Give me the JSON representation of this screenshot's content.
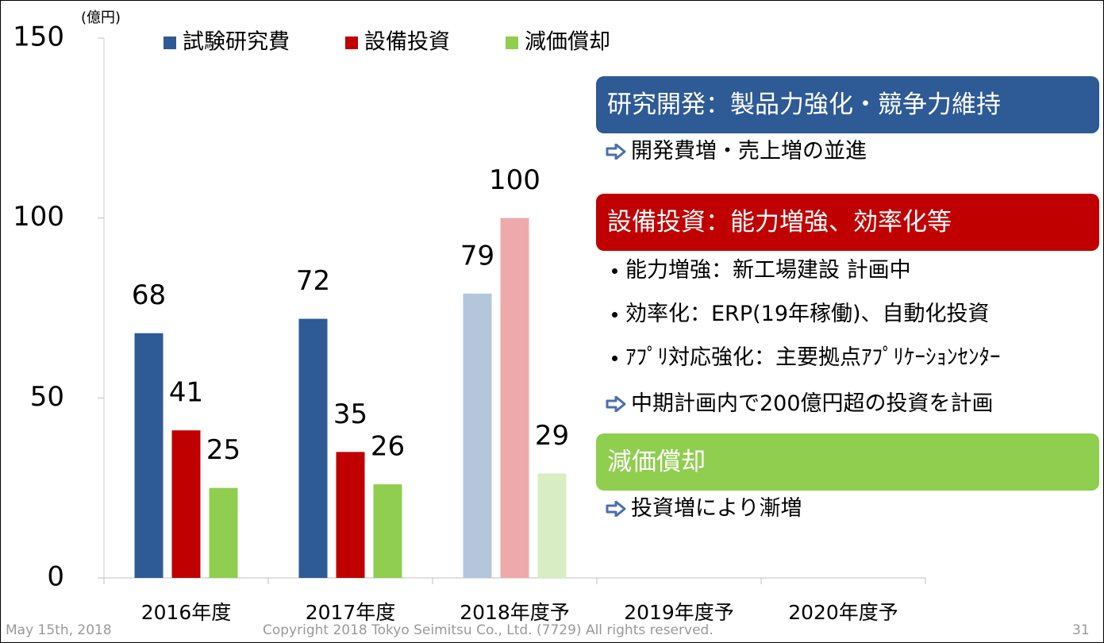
{
  "chart_data": {
    "type": "bar",
    "unit_label": "(億円)",
    "categories": [
      "2016年度",
      "2017年度",
      "2018年度予",
      "2019年度予",
      "2020年度予"
    ],
    "series": [
      {
        "name": "試験研究費",
        "color": "#2e5a96",
        "point_colors": [
          "#2e5a96",
          "#2e5a96",
          "#b4c6dc",
          null,
          null
        ],
        "values": [
          68,
          72,
          79,
          null,
          null
        ]
      },
      {
        "name": "設備投資",
        "color": "#c00000",
        "point_colors": [
          "#c00000",
          "#c00000",
          "#eeaaaa",
          null,
          null
        ],
        "values": [
          41,
          35,
          100,
          null,
          null
        ]
      },
      {
        "name": "減価償却",
        "color": "#8fce4f",
        "point_colors": [
          "#8fce4f",
          "#8fce4f",
          "#d8eec2",
          null,
          null
        ],
        "values": [
          25,
          26,
          29,
          null,
          null
        ]
      }
    ],
    "ylim": [
      0,
      150
    ],
    "yticks": [
      0,
      50,
      100,
      150
    ],
    "legend": "top"
  },
  "panels": [
    {
      "heading": "研究開発：製品力強化・競争力維持",
      "color": "#2e5a96",
      "items": [
        {
          "kind": "arrow",
          "text": "開発費増・売上増の並進"
        }
      ]
    },
    {
      "heading": "設備投資：能力増強、効率化等",
      "color": "#c00000",
      "items": [
        {
          "kind": "bullet",
          "text": "能力増強：新工場建設 計画中"
        },
        {
          "kind": "bullet",
          "text": "効率化：ERP(19年稼働)、自動化投資"
        },
        {
          "kind": "bullet",
          "text": "ｱﾌﾟﾘ対応強化：主要拠点ｱﾌﾟﾘｹｰｼｮﾝｾﾝﾀｰ"
        },
        {
          "kind": "arrow",
          "text": "中期計画内で200億円超の投資を計画"
        }
      ]
    },
    {
      "heading": "減価償却",
      "color": "#8fce4f",
      "items": [
        {
          "kind": "arrow",
          "text": "投資増により漸増"
        }
      ]
    }
  ],
  "footer": {
    "date": "May 15th, 2018",
    "copyright": "Copyright  2018 Tokyo Seimitsu Co., Ltd. (7729)   All rights reserved.",
    "page": "31"
  }
}
